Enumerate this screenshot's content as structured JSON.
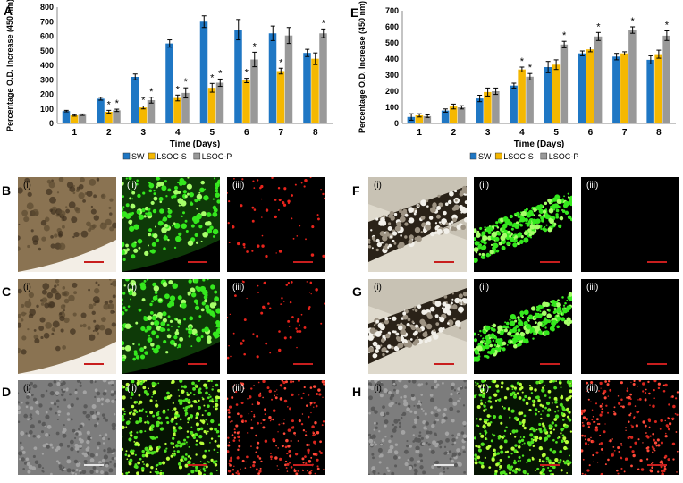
{
  "colors": {
    "sw": "#1f77c4",
    "lsoc_s": "#f5b800",
    "lsoc_p": "#999999"
  },
  "panel_letters": {
    "A": "A",
    "B": "B",
    "C": "C",
    "D": "D",
    "E": "E",
    "F": "F",
    "G": "G",
    "H": "H"
  },
  "sublabels": [
    "(i)",
    "(ii)",
    "(iii)"
  ],
  "chart_data": [
    {
      "type": "bar",
      "panel": "A",
      "categories": [
        "1",
        "2",
        "3",
        "4",
        "5",
        "6",
        "7",
        "8"
      ],
      "xlabel": "Time (Days)",
      "ylabel": "Percentage O.D. Increase (450 nm)",
      "ylim": [
        0,
        800
      ],
      "yticks": [
        "0",
        "100",
        "200",
        "300",
        "400",
        "500",
        "600",
        "700",
        "800"
      ],
      "legend_position": "bottom",
      "series": [
        {
          "name": "SW",
          "values": [
            85,
            170,
            320,
            550,
            700,
            645,
            620,
            485
          ],
          "errors": [
            5,
            10,
            20,
            25,
            40,
            70,
            50,
            25
          ]
        },
        {
          "name": "LSOC-S",
          "values": [
            55,
            80,
            110,
            175,
            245,
            295,
            360,
            445
          ],
          "errors": [
            5,
            10,
            10,
            20,
            30,
            15,
            20,
            40
          ]
        },
        {
          "name": "LSOC-P",
          "values": [
            60,
            90,
            160,
            210,
            280,
            440,
            605,
            620
          ],
          "errors": [
            5,
            8,
            20,
            35,
            25,
            50,
            55,
            30
          ]
        }
      ],
      "annotations": [
        {
          "category": "2",
          "series": "LSOC-S",
          "text": "*"
        },
        {
          "category": "2",
          "series": "LSOC-P",
          "text": "*"
        },
        {
          "category": "3",
          "series": "LSOC-S",
          "text": "*"
        },
        {
          "category": "3",
          "series": "LSOC-P",
          "text": "*"
        },
        {
          "category": "4",
          "series": "LSOC-S",
          "text": "*"
        },
        {
          "category": "4",
          "series": "LSOC-P",
          "text": "*"
        },
        {
          "category": "5",
          "series": "LSOC-S",
          "text": "*"
        },
        {
          "category": "5",
          "series": "LSOC-P",
          "text": "*"
        },
        {
          "category": "6",
          "series": "LSOC-S",
          "text": "*"
        },
        {
          "category": "6",
          "series": "LSOC-P",
          "text": "*"
        },
        {
          "category": "7",
          "series": "LSOC-S",
          "text": "*"
        },
        {
          "category": "8",
          "series": "LSOC-P",
          "text": "*"
        }
      ]
    },
    {
      "type": "bar",
      "panel": "E",
      "categories": [
        "1",
        "2",
        "3",
        "4",
        "5",
        "6",
        "7",
        "8"
      ],
      "xlabel": "Time (Days)",
      "ylabel": "Percentage O.D. Increase (450 nm)",
      "ylim": [
        0,
        700
      ],
      "yticks": [
        "0",
        "100",
        "200",
        "300",
        "400",
        "500",
        "600",
        "700"
      ],
      "legend_position": "bottom",
      "series": [
        {
          "name": "SW",
          "values": [
            40,
            80,
            155,
            235,
            350,
            435,
            415,
            395
          ],
          "errors": [
            20,
            10,
            20,
            15,
            35,
            15,
            20,
            25
          ]
        },
        {
          "name": "LSOC-S",
          "values": [
            50,
            105,
            195,
            335,
            365,
            460,
            435,
            430
          ],
          "errors": [
            10,
            15,
            25,
            15,
            30,
            15,
            10,
            25
          ]
        },
        {
          "name": "LSOC-P",
          "values": [
            45,
            100,
            200,
            290,
            490,
            540,
            580,
            545
          ],
          "errors": [
            8,
            10,
            20,
            20,
            20,
            25,
            20,
            30
          ]
        }
      ],
      "annotations": [
        {
          "category": "4",
          "series": "LSOC-S",
          "text": "*"
        },
        {
          "category": "4",
          "series": "LSOC-P",
          "text": "*"
        },
        {
          "category": "5",
          "series": "LSOC-P",
          "text": "*"
        },
        {
          "category": "6",
          "series": "LSOC-P",
          "text": "*"
        },
        {
          "category": "7",
          "series": "LSOC-P",
          "text": "*"
        },
        {
          "category": "8",
          "series": "LSOC-P",
          "text": "*"
        }
      ]
    }
  ],
  "micrographs": [
    {
      "panel": "B",
      "row": 0,
      "side": "left",
      "tiles": [
        "brightfield-tissue",
        "green-fluorescence",
        "red-fluorescence"
      ]
    },
    {
      "panel": "C",
      "row": 1,
      "side": "left",
      "tiles": [
        "brightfield-tissue",
        "green-fluorescence",
        "red-fluorescence"
      ]
    },
    {
      "panel": "D",
      "row": 2,
      "side": "left",
      "tiles": [
        "brightfield-cells",
        "green-cells",
        "red-cells"
      ]
    },
    {
      "panel": "F",
      "row": 0,
      "side": "right",
      "tiles": [
        "brightfield-scaffold",
        "green-strip",
        "dark"
      ]
    },
    {
      "panel": "G",
      "row": 1,
      "side": "right",
      "tiles": [
        "brightfield-scaffold",
        "green-strip",
        "dark"
      ]
    },
    {
      "panel": "H",
      "row": 2,
      "side": "right",
      "tiles": [
        "brightfield-cells",
        "green-cells",
        "red-cells"
      ]
    }
  ]
}
